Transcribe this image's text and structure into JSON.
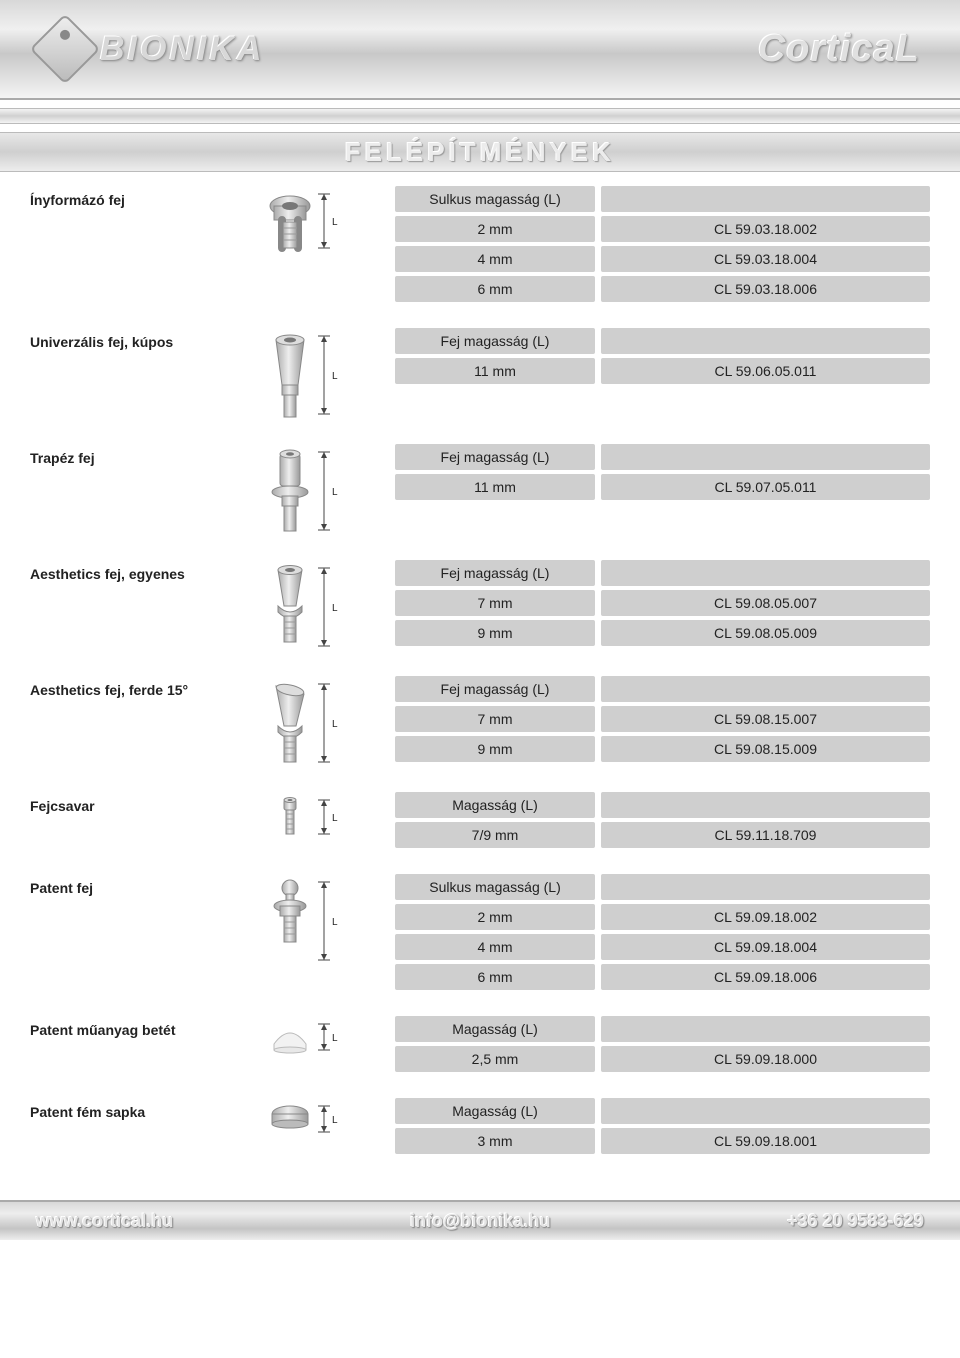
{
  "header": {
    "brand_left": "BIONIKA",
    "brand_right": "CorticaL"
  },
  "page_title": "FELÉPÍTMÉNYEK",
  "colors": {
    "row_bg": "#cfcfcf",
    "header_metal_light": "#f0f0f0",
    "header_metal_dark": "#c8c8c8",
    "text": "#222222"
  },
  "dim_label": "L",
  "sections": [
    {
      "title": "Ínyformázó fej",
      "icon": "healing-cap",
      "header_label": "Sulkus magasság (L)",
      "rows": [
        {
          "size": "2 mm",
          "code": "CL 59.03.18.002"
        },
        {
          "size": "4 mm",
          "code": "CL 59.03.18.004"
        },
        {
          "size": "6 mm",
          "code": "CL 59.03.18.006"
        }
      ]
    },
    {
      "title": "Univerzális fej, kúpos",
      "icon": "conical-abutment",
      "header_label": "Fej magasság (L)",
      "rows": [
        {
          "size": "11 mm",
          "code": "CL 59.06.05.011"
        }
      ]
    },
    {
      "title": "Trapéz fej",
      "icon": "trapez-abutment",
      "header_label": "Fej magasság (L)",
      "rows": [
        {
          "size": "11 mm",
          "code": "CL 59.07.05.011"
        }
      ]
    },
    {
      "title": "Aesthetics fej, egyenes",
      "icon": "aesthetics-straight",
      "header_label": "Fej magasság (L)",
      "rows": [
        {
          "size": "7 mm",
          "code": "CL 59.08.05.007"
        },
        {
          "size": "9 mm",
          "code": "CL 59.08.05.009"
        }
      ]
    },
    {
      "title": "Aesthetics fej, ferde 15°",
      "icon": "aesthetics-angled",
      "header_label": "Fej magasság (L)",
      "rows": [
        {
          "size": "7 mm",
          "code": "CL 59.08.15.007"
        },
        {
          "size": "9 mm",
          "code": "CL 59.08.15.009"
        }
      ]
    },
    {
      "title": "Fejcsavar",
      "icon": "head-screw",
      "header_label": "Magasság (L)",
      "rows": [
        {
          "size": "7/9 mm",
          "code": "CL 59.11.18.709"
        }
      ]
    },
    {
      "title": "Patent fej",
      "icon": "ball-abutment",
      "header_label": "Sulkus magasság (L)",
      "rows": [
        {
          "size": "2 mm",
          "code": "CL 59.09.18.002"
        },
        {
          "size": "4 mm",
          "code": "CL 59.09.18.004"
        },
        {
          "size": "6 mm",
          "code": "CL 59.09.18.006"
        }
      ]
    },
    {
      "title": "Patent műanyag betét",
      "icon": "plastic-insert",
      "header_label": "Magasság (L)",
      "rows": [
        {
          "size": "2,5 mm",
          "code": "CL 59.09.18.000"
        }
      ]
    },
    {
      "title": "Patent fém sapka",
      "icon": "metal-cap",
      "header_label": "Magasság (L)",
      "rows": [
        {
          "size": "3 mm",
          "code": "CL 59.09.18.001"
        }
      ]
    }
  ],
  "footer": {
    "website": "www.cortical.hu",
    "email": "info@bionika.hu",
    "phone": "+36 20 9583-629"
  }
}
